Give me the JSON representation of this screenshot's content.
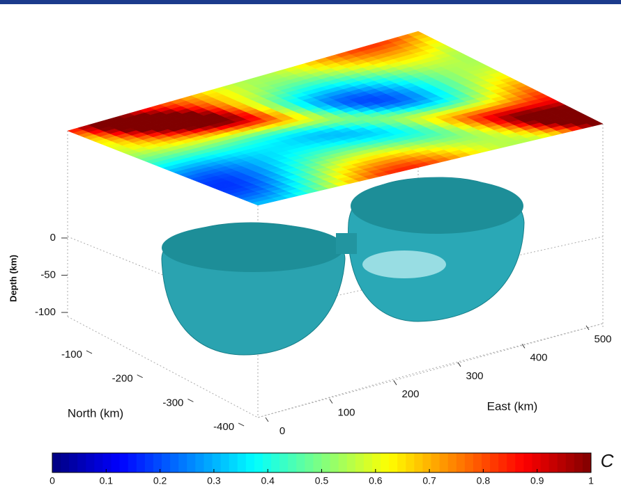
{
  "chart_data": {
    "type": "surface3d",
    "zlabel": "Depth (km)",
    "ylabel": "North (km)",
    "xlabel": "East (km)",
    "zticks": [
      0,
      -50,
      -100
    ],
    "yticks": [
      -100,
      -200,
      -300,
      -400
    ],
    "xticks": [
      0,
      100,
      200,
      300,
      400,
      500
    ],
    "colorbar": {
      "label": "C",
      "lim": [
        0,
        1
      ],
      "ticks": [
        0,
        0.1,
        0.2,
        0.3,
        0.4,
        0.5,
        0.6,
        0.7,
        0.8,
        0.9,
        1
      ],
      "colormap": "jet"
    }
  }
}
